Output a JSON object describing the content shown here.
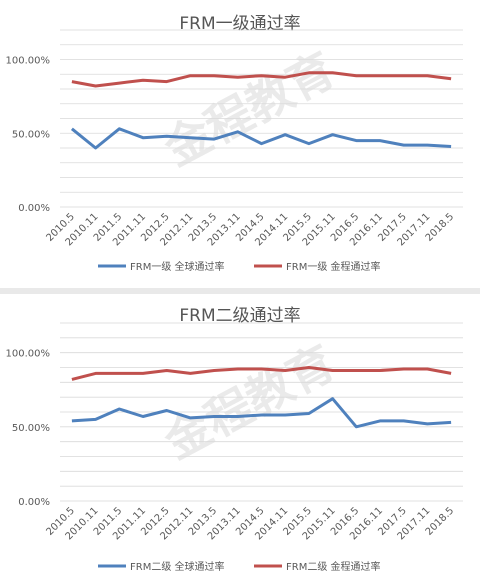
{
  "chart_data": [
    {
      "type": "line",
      "title": "FRM一级通过率",
      "watermark": "金程教育",
      "categories": [
        "2010.5",
        "2010.11",
        "2011.5",
        "2011.11",
        "2012.5",
        "2012.11",
        "2013.5",
        "2013.11",
        "2014.5",
        "2014.11",
        "2015.5",
        "2015.11",
        "2016.5",
        "2016.11",
        "2017.5",
        "2017.11",
        "2018.5"
      ],
      "yticks": [
        "0.00%",
        "50.00%",
        "100.00%"
      ],
      "ylim": [
        0,
        1.2
      ],
      "grid": true,
      "legend_position": "bottom",
      "series": [
        {
          "name": "FRM一级 全球通过率",
          "color": "#4f81bd",
          "values": [
            0.53,
            0.4,
            0.53,
            0.47,
            0.48,
            0.47,
            0.46,
            0.51,
            0.43,
            0.49,
            0.43,
            0.49,
            0.45,
            0.45,
            0.42,
            0.42,
            0.41
          ]
        },
        {
          "name": "FRM一级 金程通过率",
          "color": "#c0504d",
          "values": [
            0.85,
            0.82,
            0.84,
            0.86,
            0.85,
            0.89,
            0.89,
            0.88,
            0.89,
            0.88,
            0.91,
            0.91,
            0.89,
            0.89,
            0.89,
            0.89,
            0.87
          ]
        }
      ]
    },
    {
      "type": "line",
      "title": "FRM二级通过率",
      "watermark": "金程教育",
      "categories": [
        "2010.5",
        "2010.11",
        "2011.5",
        "2011.11",
        "2012.5",
        "2012.11",
        "2013.5",
        "2013.11",
        "2014.5",
        "2014.11",
        "2015.5",
        "2015.11",
        "2016.5",
        "2016.11",
        "2017.5",
        "2017.11",
        "2018.5"
      ],
      "yticks": [
        "0.00%",
        "50.00%",
        "100.00%"
      ],
      "ylim": [
        0,
        1.2
      ],
      "grid": true,
      "legend_position": "bottom",
      "series": [
        {
          "name": "FRM二级 全球通过率",
          "color": "#4f81bd",
          "values": [
            0.54,
            0.55,
            0.62,
            0.57,
            0.61,
            0.56,
            0.57,
            0.57,
            0.58,
            0.58,
            0.59,
            0.69,
            0.5,
            0.54,
            0.54,
            0.52,
            0.53
          ]
        },
        {
          "name": "FRM二级 金程通过率",
          "color": "#c0504d",
          "values": [
            0.82,
            0.86,
            0.86,
            0.86,
            0.88,
            0.86,
            0.88,
            0.89,
            0.89,
            0.88,
            0.9,
            0.88,
            0.88,
            0.88,
            0.89,
            0.89,
            0.86
          ]
        }
      ]
    }
  ]
}
